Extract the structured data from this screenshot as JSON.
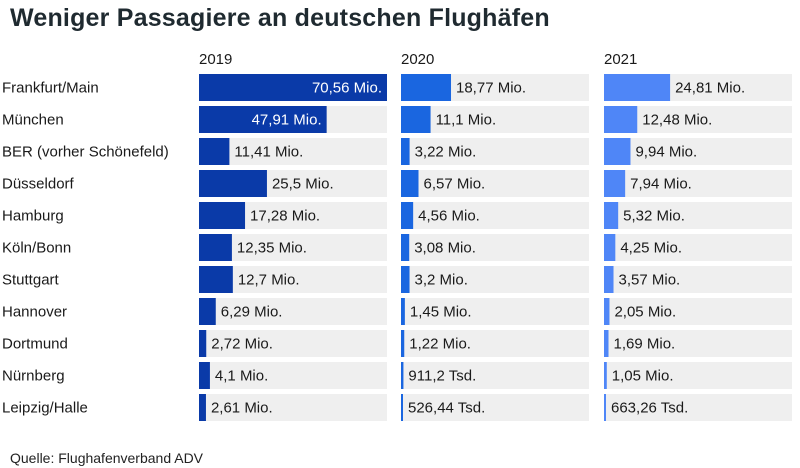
{
  "title": "Weniger Passagiere an deutschen Flughäfen",
  "source": "Quelle: Flughafenverband ADV",
  "chart_data": {
    "type": "bar",
    "orientation": "horizontal",
    "title": "Weniger Passagiere an deutschen Flughäfen",
    "categories": [
      "Frankfurt/Main",
      "München",
      "BER (vorher Schönefeld)",
      "Düsseldorf",
      "Hamburg",
      "Köln/Bonn",
      "Stuttgart",
      "Hannover",
      "Dortmund",
      "Nürnberg",
      "Leipzig/Halle"
    ],
    "xlim": [
      0,
      70.56
    ],
    "unit": "Mio.",
    "series": [
      {
        "name": "2019",
        "color": "#0a3aa8",
        "values": [
          70.56,
          47.91,
          11.41,
          25.5,
          17.28,
          12.35,
          12.7,
          6.29,
          2.72,
          4.1,
          2.61
        ],
        "labels": [
          "70,56 Mio.",
          "47,91 Mio.",
          "11,41 Mio.",
          "25,5 Mio.",
          "17,28 Mio.",
          "12,35 Mio.",
          "12,7 Mio.",
          "6,29 Mio.",
          "2,72 Mio.",
          "4,1 Mio.",
          "2,61 Mio."
        ]
      },
      {
        "name": "2020",
        "color": "#1a66e0",
        "values": [
          18.77,
          11.1,
          3.22,
          6.57,
          4.56,
          3.08,
          3.2,
          1.45,
          1.22,
          0.9112,
          0.52644
        ],
        "labels": [
          "18,77 Mio.",
          "11,1 Mio.",
          "3,22 Mio.",
          "6,57 Mio.",
          "4,56 Mio.",
          "3,08 Mio.",
          "3,2 Mio.",
          "1,45 Mio.",
          "1,22 Mio.",
          "911,2 Tsd.",
          "526,44 Tsd."
        ]
      },
      {
        "name": "2021",
        "color": "#4f86f7",
        "values": [
          24.81,
          12.48,
          9.94,
          7.94,
          5.32,
          4.25,
          3.57,
          2.05,
          1.69,
          1.05,
          0.66326
        ],
        "labels": [
          "24,81 Mio.",
          "12,48 Mio.",
          "9,94 Mio.",
          "7,94 Mio.",
          "5,32 Mio.",
          "4,25 Mio.",
          "3,57 Mio.",
          "2,05 Mio.",
          "1,69 Mio.",
          "1,05 Mio.",
          "663,26 Tsd."
        ]
      }
    ],
    "grid": false,
    "legend": "none"
  }
}
